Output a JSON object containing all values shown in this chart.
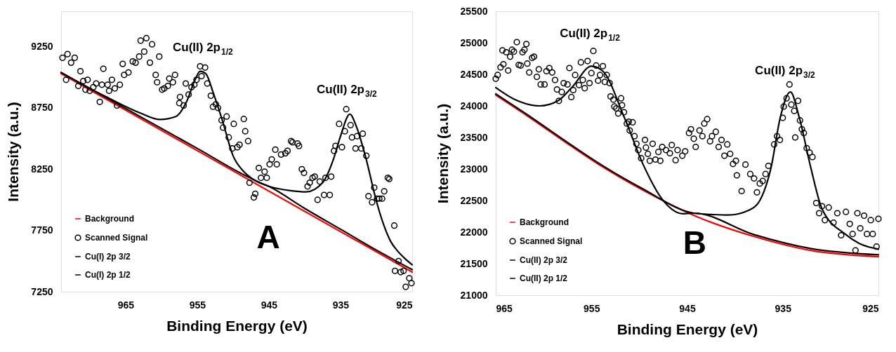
{
  "chart_data": [
    {
      "type": "line",
      "xlabel": "Binding Energy (eV)",
      "ylabel": "Intensity (a.u.)",
      "xlim": [
        974,
        925
      ],
      "xticks": [
        965,
        955,
        945,
        935,
        925
      ],
      "ylim": [
        7250,
        9540
      ],
      "yticks": [
        7250,
        7750,
        8250,
        8750,
        9250
      ],
      "legend": "bottom left",
      "annotations": [
        "Cu(II) 2p$_{1/2}$",
        "Cu(II) 2p$_{3/2}$",
        "A"
      ],
      "series": [
        {
          "name": "Background",
          "type": "line",
          "color": "#ff0000",
          "x": [
            974,
            925
          ],
          "values": [
            9030,
            7410
          ]
        },
        {
          "name": "Scanned Signal",
          "type": "scatter",
          "marker": "circle",
          "color": "#000000",
          "x": [
            973.8,
            973.1,
            973.3,
            972.6,
            972.1,
            971.3,
            971.6,
            970.9,
            970.3,
            970.6,
            970.0,
            969.5,
            969.1,
            968.6,
            968.1,
            968.3,
            967.5,
            967.3,
            966.9,
            966.5,
            966.2,
            965.8,
            965.4,
            965.2,
            964.6,
            964.0,
            963.6,
            963.1,
            962.9,
            962.4,
            962.1,
            961.6,
            961.3,
            960.8,
            960.6,
            960.3,
            959.9,
            959.6,
            959.1,
            958.9,
            958.4,
            958.1,
            957.5,
            957.4,
            956.9,
            956.6,
            956.2,
            955.8,
            955.4,
            955.1,
            954.6,
            953.9,
            954.4,
            953.6,
            953.1,
            952.8,
            952.4,
            952.1,
            951.6,
            951.4,
            950.9,
            950.6,
            950.1,
            949.9,
            949.4,
            949.1,
            948.5,
            948.3,
            947.9,
            947.7,
            947.1,
            946.9,
            946.4,
            946.1,
            945.6,
            945.3,
            944.9,
            944.6,
            943.9,
            944.1,
            943.3,
            942.7,
            942.4,
            941.9,
            941.7,
            941.0,
            940.8,
            940.4,
            940.1,
            939.6,
            939.3,
            938.9,
            938.6,
            938.2,
            937.9,
            937.3,
            937.1,
            936.5,
            936.3,
            935.9,
            935.7,
            935.2,
            934.8,
            934.4,
            934.2,
            933.6,
            933.4,
            932.9,
            932.7,
            932.1,
            931.9,
            931.4,
            931.1,
            930.6,
            930.3,
            929.9,
            929.6,
            929.2,
            928.9,
            928.4,
            928.2,
            927.5,
            927.4,
            926.9,
            926.6,
            926.2,
            925.9,
            925.4,
            925.1
          ],
          "values": [
            9160,
            9190,
            8980,
            9120,
            9160,
            9050,
            8930,
            8970,
            8980,
            8900,
            8890,
            8920,
            8950,
            8800,
            9070,
            8940,
            8940,
            8890,
            8980,
            8910,
            8770,
            8940,
            9110,
            9020,
            9040,
            9130,
            9120,
            9170,
            9300,
            9210,
            9320,
            9120,
            9270,
            9020,
            8960,
            9170,
            8900,
            8910,
            8930,
            8990,
            8960,
            9020,
            8790,
            8840,
            8770,
            8950,
            8860,
            8920,
            8940,
            8980,
            9090,
            9080,
            9010,
            8950,
            8850,
            8760,
            8780,
            8750,
            8650,
            8590,
            8680,
            8510,
            8420,
            8620,
            8430,
            8450,
            8660,
            8560,
            8480,
            8140,
            8020,
            8050,
            8260,
            8180,
            8230,
            8180,
            8290,
            8330,
            8290,
            8410,
            8370,
            8380,
            8400,
            8480,
            8470,
            8460,
            8440,
            8250,
            8220,
            8110,
            8140,
            8180,
            8190,
            8000,
            8150,
            8040,
            8180,
            8040,
            8190,
            8400,
            8440,
            8620,
            8430,
            8560,
            8740,
            8610,
            8510,
            8420,
            8520,
            8420,
            8540,
            8360,
            8030,
            7980,
            8100,
            8010,
            8010,
            8010,
            8070,
            8180,
            8170,
            7790,
            7420,
            7500,
            7410,
            7420,
            7290,
            7360,
            7320
          ]
        },
        {
          "name": "Cu(I) 2p 3/2",
          "type": "line",
          "color": "#000000",
          "x": [
            974,
            955,
            948,
            945,
            942,
            939.8,
            937.5,
            936,
            935,
            933.7,
            932.8,
            931.5,
            930,
            929,
            928,
            927,
            926,
            925
          ],
          "values": [
            9040,
            8420,
            8190,
            8110,
            8075,
            8065,
            8140,
            8330,
            8520,
            8700,
            8600,
            8350,
            7990,
            7800,
            7660,
            7580,
            7520,
            7470
          ]
        },
        {
          "name": "Cu(I) 2p 1/2",
          "type": "line",
          "color": "#000000",
          "x": [
            974,
            968,
            963,
            960.2,
            958,
            956.5,
            955.3,
            954.6,
            953.8,
            952.8,
            951.5,
            950,
            948.5,
            947,
            945,
            940,
            935,
            930,
            925
          ],
          "values": [
            9040,
            8850,
            8710,
            8656,
            8680,
            8800,
            8980,
            9050,
            9030,
            8880,
            8650,
            8360,
            8230,
            8160,
            8110,
            7930,
            7760,
            7590,
            7430
          ]
        }
      ]
    },
    {
      "type": "line",
      "xlabel": "Binding Energy (eV)",
      "ylabel": "Intensity (a.u.)",
      "xlim": [
        965,
        925
      ],
      "xticks": [
        965,
        955,
        945,
        935,
        925
      ],
      "ylim": [
        21000,
        25500
      ],
      "yticks": [
        21000,
        21500,
        22000,
        22500,
        23000,
        23500,
        24000,
        24500,
        25000,
        25500
      ],
      "legend": "bottom left",
      "annotations": [
        "Cu(II) 2p$_{1/2}$",
        "Cu(II) 2p$_{3/2}$",
        "B"
      ],
      "series": [
        {
          "name": "Background",
          "type": "line",
          "color": "#ff0000",
          "x": [
            965,
            961.6,
            957.2,
            953.9,
            949.8,
            943.9,
            938,
            932.1,
            925
          ],
          "values": [
            24170,
            23830,
            23370,
            23040,
            22680,
            22240,
            21930,
            21710,
            21610
          ]
        },
        {
          "name": "Scanned Signal",
          "type": "scatter",
          "marker": "circle",
          "color": "#000000",
          "x": [
            965.0,
            964.8,
            964.5,
            964.3,
            964.2,
            963.9,
            963.7,
            963.5,
            963.3,
            963.1,
            962.8,
            962.6,
            962.4,
            962.2,
            962.0,
            961.8,
            961.7,
            961.5,
            961.2,
            961.0,
            960.7,
            960.5,
            960.3,
            959.9,
            959.7,
            959.4,
            959.1,
            958.8,
            958.6,
            958.4,
            958.1,
            957.9,
            957.5,
            957.3,
            957.1,
            956.9,
            956.7,
            956.3,
            956.1,
            955.9,
            955.7,
            955.4,
            955.2,
            955.0,
            954.8,
            954.5,
            954.3,
            954.1,
            953.8,
            953.6,
            953.4,
            953.1,
            953.0,
            952.7,
            952.6,
            952.4,
            952.2,
            951.9,
            951.8,
            951.6,
            951.3,
            951.1,
            951.0,
            950.7,
            950.5,
            950.3,
            950.1,
            949.8,
            949.4,
            949.3,
            949.1,
            948.9,
            948.6,
            948.3,
            948.0,
            947.8,
            947.6,
            947.2,
            946.8,
            946.6,
            946.2,
            946.0,
            945.5,
            945.2,
            944.8,
            944.6,
            944.3,
            944.1,
            943.7,
            943.4,
            943.2,
            942.9,
            942.6,
            942.4,
            942.0,
            941.7,
            941.4,
            941.1,
            940.8,
            940.5,
            940.2,
            939.9,
            939.8,
            939.3,
            938.9,
            938.4,
            938.0,
            937.7,
            937.4,
            937.1,
            936.8,
            936.5,
            935.9,
            935.6,
            935.3,
            935.0,
            934.9,
            934.6,
            934.3,
            934.1,
            933.8,
            933.7,
            933.4,
            933.2,
            933.0,
            932.8,
            932.5,
            932.2,
            931.9,
            931.5,
            931.2,
            930.9,
            930.6,
            930.2,
            929.7,
            929.3,
            928.9,
            928.4,
            928.0,
            927.7,
            927.4,
            927.2,
            926.9,
            926.5,
            926.2,
            925.8,
            925.6,
            925.2,
            925.0
          ],
          "values": [
            24430,
            24490,
            24610,
            24880,
            24660,
            24850,
            24560,
            24780,
            24890,
            24860,
            25010,
            24650,
            24640,
            24850,
            24890,
            24980,
            24670,
            24530,
            24760,
            24780,
            24460,
            24580,
            24340,
            24340,
            24550,
            24600,
            24530,
            24410,
            24260,
            24080,
            24220,
            24360,
            24340,
            24600,
            24140,
            24250,
            24490,
            24330,
            24690,
            24410,
            24280,
            24710,
            24360,
            24520,
            24870,
            24640,
            24400,
            24490,
            24630,
            24380,
            24490,
            24360,
            24150,
            24100,
            23990,
            23960,
            23880,
            24120,
            24010,
            23900,
            23720,
            23750,
            23610,
            23740,
            23520,
            23400,
            23300,
            23170,
            23460,
            23340,
            23240,
            23130,
            23400,
            23150,
            23270,
            23130,
            23350,
            23300,
            23250,
            23380,
            23140,
            23300,
            23210,
            23280,
            23570,
            23630,
            23480,
            23350,
            23610,
            23520,
            23720,
            23790,
            23440,
            23520,
            23590,
            23350,
            23460,
            23210,
            23390,
            23240,
            23080,
            23130,
            22900,
            22650,
            23070,
            22920,
            22850,
            22630,
            22770,
            22810,
            22920,
            23050,
            23390,
            23520,
            23460,
            23810,
            23990,
            24120,
            24340,
            24020,
            23920,
            23500,
            24080,
            23770,
            23630,
            23570,
            23330,
            23260,
            23190,
            22460,
            22300,
            22410,
            22190,
            22390,
            22150,
            22300,
            21950,
            22320,
            22130,
            21970,
            21710,
            22300,
            22060,
            22260,
            21970,
            22190,
            21970,
            21770,
            22210
          ]
        },
        {
          "name": "Cu(II) 2p 3/2",
          "type": "line",
          "color": "#000000",
          "x": [
            965,
            961.6,
            957.2,
            953.9,
            949.8,
            944.3,
            942.5,
            940.7,
            938.5,
            937.4,
            936.2,
            935.3,
            934.2,
            933.3,
            932.1,
            930.9,
            928.5,
            927,
            925
          ],
          "values": [
            24190,
            23850,
            23390,
            23060,
            22700,
            22300,
            22280,
            22270,
            22350,
            22500,
            23040,
            23790,
            24220,
            23830,
            23040,
            22370,
            21970,
            21820,
            21730
          ]
        },
        {
          "name": "Cu(II) 2p 1/2",
          "type": "line",
          "color": "#000000",
          "x": [
            965,
            963,
            960.4,
            958.5,
            957,
            955,
            953.8,
            951.6,
            949.5,
            947.7,
            945.4,
            944.3,
            938,
            932.1,
            925
          ],
          "values": [
            24290,
            24100,
            24000,
            24080,
            24300,
            24630,
            24550,
            23830,
            23040,
            22540,
            22290,
            22300,
            21960,
            21740,
            21640
          ]
        }
      ]
    }
  ]
}
